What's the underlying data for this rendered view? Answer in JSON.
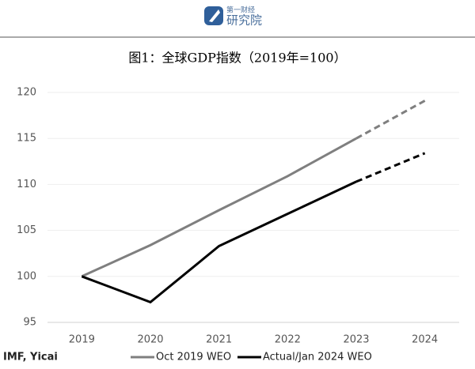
{
  "header": {
    "brand_small": "第一财经",
    "brand": "研究院"
  },
  "chart_data": {
    "type": "line",
    "title": "图1：全球GDP指数（2019年=100）",
    "source": "IMF, Yicai",
    "categories": [
      "2019",
      "2020",
      "2021",
      "2022",
      "2023",
      "2024"
    ],
    "series": [
      {
        "name": "Oct 2019 WEO",
        "color": "#7f7f7f",
        "values": [
          100,
          103.4,
          107.2,
          110.9,
          115.0,
          119.1
        ]
      },
      {
        "name": "Actual/Jan 2024 WEO",
        "color": "#000000",
        "values": [
          100,
          97.2,
          103.3,
          106.8,
          110.3,
          113.4
        ]
      }
    ],
    "projection_from": "2023",
    "ylim": [
      95,
      120
    ],
    "yticks": [
      95,
      100,
      105,
      110,
      115,
      120
    ],
    "grid": true
  }
}
